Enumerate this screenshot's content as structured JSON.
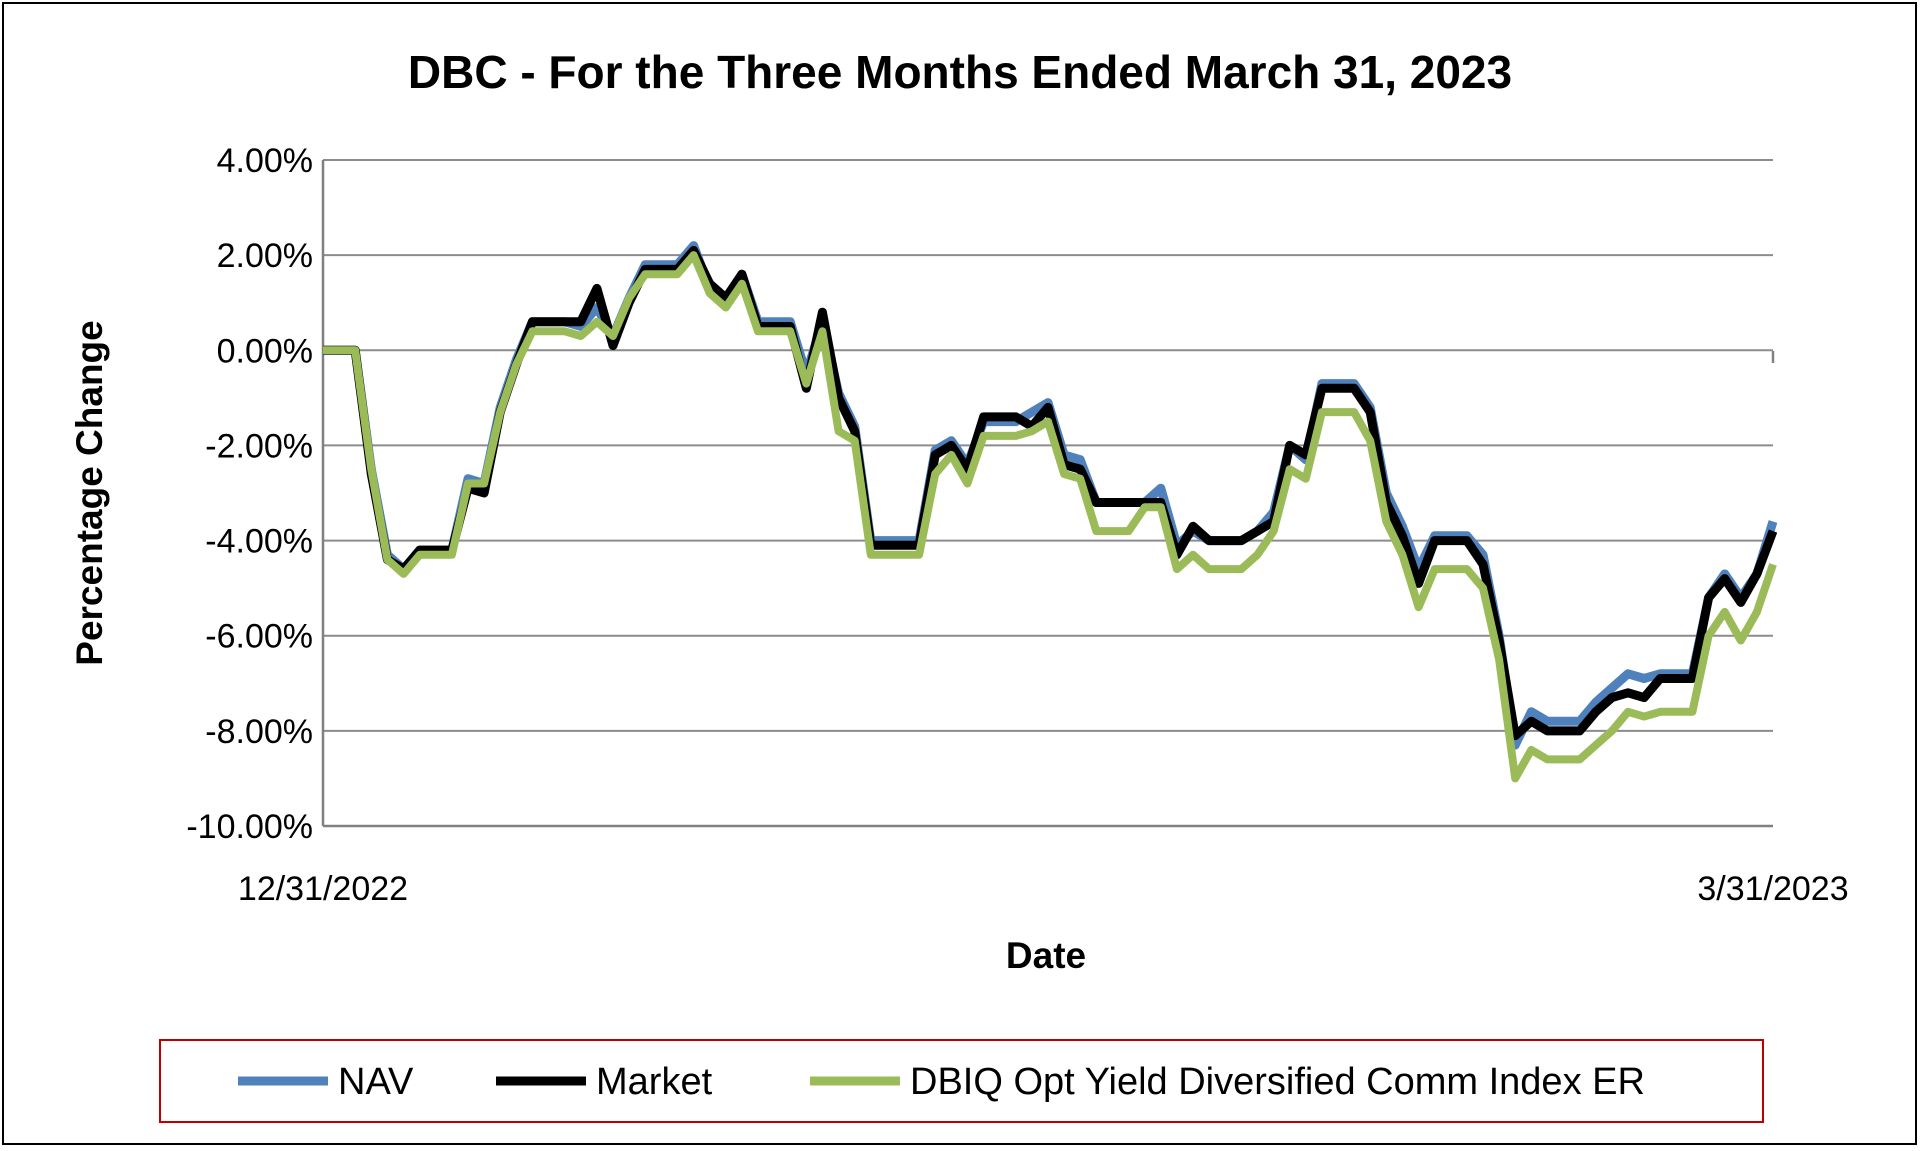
{
  "chart_data": {
    "type": "line",
    "title": "DBC - For the Three Months Ended March 31, 2023",
    "xlabel": "Date",
    "ylabel": "Percentage Change",
    "x_tick_labels": [
      "12/31/2022",
      "3/31/2023"
    ],
    "y_tick_labels": [
      "4.00%",
      "2.00%",
      "0.00%",
      "-2.00%",
      "-4.00%",
      "-6.00%",
      "-8.00%",
      "-10.00%"
    ],
    "ylim": [
      -10,
      4
    ],
    "grid": true,
    "legend_position": "bottom",
    "series": [
      {
        "name": "NAV",
        "color": "#4f81bd",
        "values": [
          0,
          0,
          0,
          -2.5,
          -4.3,
          -4.6,
          -4.2,
          -4.2,
          -4.2,
          -2.7,
          -2.8,
          -1.2,
          -0.2,
          0.6,
          0.6,
          0.6,
          0.5,
          0.9,
          0.3,
          1.1,
          1.8,
          1.8,
          1.8,
          2.2,
          1.3,
          1.0,
          1.6,
          0.6,
          0.6,
          0.6,
          -0.5,
          0.6,
          -0.9,
          -1.6,
          -4.0,
          -4.0,
          -4.0,
          -4.0,
          -2.1,
          -1.9,
          -2.4,
          -1.5,
          -1.5,
          -1.5,
          -1.3,
          -1.1,
          -2.2,
          -2.3,
          -3.2,
          -3.2,
          -3.2,
          -3.2,
          -2.9,
          -4.1,
          -3.8,
          -4.0,
          -4.0,
          -4.0,
          -3.8,
          -3.4,
          -2.0,
          -2.3,
          -0.7,
          -0.7,
          -0.7,
          -1.2,
          -3.0,
          -3.7,
          -4.6,
          -3.9,
          -3.9,
          -3.9,
          -4.3,
          -6.0,
          -8.3,
          -7.6,
          -7.8,
          -7.8,
          -7.8,
          -7.4,
          -7.1,
          -6.8,
          -6.9,
          -6.8,
          -6.8,
          -6.8,
          -5.2,
          -4.7,
          -5.2,
          -4.7,
          -3.6
        ]
      },
      {
        "name": "Market",
        "color": "#000000",
        "values": [
          0,
          0,
          0,
          -2.6,
          -4.4,
          -4.6,
          -4.2,
          -4.2,
          -4.2,
          -2.9,
          -3.0,
          -1.3,
          -0.3,
          0.6,
          0.6,
          0.6,
          0.6,
          1.3,
          0.1,
          1.0,
          1.7,
          1.7,
          1.7,
          2.1,
          1.4,
          1.1,
          1.6,
          0.5,
          0.5,
          0.5,
          -0.8,
          0.8,
          -1.0,
          -1.7,
          -4.1,
          -4.1,
          -4.1,
          -4.1,
          -2.2,
          -2.0,
          -2.5,
          -1.4,
          -1.4,
          -1.4,
          -1.6,
          -1.2,
          -2.4,
          -2.5,
          -3.2,
          -3.2,
          -3.2,
          -3.2,
          -3.2,
          -4.3,
          -3.7,
          -4.0,
          -4.0,
          -4.0,
          -3.8,
          -3.6,
          -2.0,
          -2.2,
          -0.8,
          -0.8,
          -0.8,
          -1.3,
          -3.2,
          -3.9,
          -4.9,
          -4.0,
          -4.0,
          -4.0,
          -4.5,
          -6.1,
          -8.1,
          -7.8,
          -8.0,
          -8.0,
          -8.0,
          -7.6,
          -7.3,
          -7.2,
          -7.3,
          -6.9,
          -6.9,
          -6.9,
          -5.2,
          -4.8,
          -5.3,
          -4.7,
          -3.8
        ]
      },
      {
        "name": "DBIQ Opt Yield Diversified Comm Index ER",
        "color": "#9bbb59",
        "values": [
          0,
          0,
          0,
          -2.5,
          -4.4,
          -4.7,
          -4.3,
          -4.3,
          -4.3,
          -2.8,
          -2.8,
          -1.3,
          -0.3,
          0.4,
          0.4,
          0.4,
          0.3,
          0.6,
          0.3,
          1.1,
          1.6,
          1.6,
          1.6,
          2.0,
          1.2,
          0.9,
          1.4,
          0.4,
          0.4,
          0.4,
          -0.7,
          0.4,
          -1.7,
          -1.9,
          -4.3,
          -4.3,
          -4.3,
          -4.3,
          -2.6,
          -2.2,
          -2.8,
          -1.8,
          -1.8,
          -1.8,
          -1.7,
          -1.5,
          -2.6,
          -2.7,
          -3.8,
          -3.8,
          -3.8,
          -3.3,
          -3.3,
          -4.6,
          -4.3,
          -4.6,
          -4.6,
          -4.6,
          -4.3,
          -3.8,
          -2.5,
          -2.7,
          -1.3,
          -1.3,
          -1.3,
          -1.9,
          -3.6,
          -4.3,
          -5.4,
          -4.6,
          -4.6,
          -4.6,
          -5.0,
          -6.5,
          -9.0,
          -8.4,
          -8.6,
          -8.6,
          -8.6,
          -8.3,
          -8.0,
          -7.6,
          -7.7,
          -7.6,
          -7.6,
          -7.6,
          -6.0,
          -5.5,
          -6.1,
          -5.5,
          -4.5
        ]
      }
    ]
  }
}
